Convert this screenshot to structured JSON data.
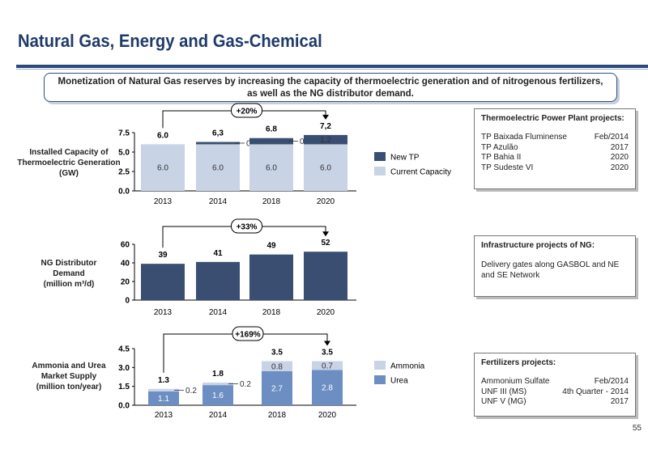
{
  "page": {
    "title": "Natural Gas, Energy and Gas-Chemical",
    "banner_line1": "Monetization of Natural Gas reserves by increasing the capacity of thermoelectric generation and of nitrogenous fertilizers,",
    "banner_line2": "as well as the NG distributor demand.",
    "page_number": "55"
  },
  "colors": {
    "title": "#1f3b6a",
    "dark_bar": "#3a4e72",
    "light_bar": "#c8d3e6",
    "mid_bar": "#6c8ec3",
    "rule": "#2a4a7c"
  },
  "labels": {
    "thermo_l1": "Installed Capacity of",
    "thermo_l2": "Thermoelectric Generation",
    "thermo_l3": "(GW)",
    "ng_l1": "NG Distributor",
    "ng_l2": "Demand",
    "ng_l3": "(million m³/d)",
    "amm_l1": "Ammonia and Urea",
    "amm_l2": "Market Supply",
    "amm_l3": "(million ton/year)"
  },
  "panels": {
    "thermo": {
      "title": "Thermoelectric Power Plant projects:",
      "rows": [
        {
          "name": "TP Baixada Fluminense",
          "date": "Feb/2014"
        },
        {
          "name": "TP Azulão",
          "date": "2017"
        },
        {
          "name": "TP Bahia II",
          "date": "2020"
        },
        {
          "name": "TP Sudeste VI",
          "date": "2020"
        }
      ]
    },
    "infra": {
      "title": "Infrastructure projects of NG:",
      "text": "Delivery gates along GASBOL and NE and SE Network"
    },
    "fert": {
      "title": "Fertilizers projects:",
      "rows": [
        {
          "name": "Ammonium Sulfate",
          "date": "Feb/2014"
        },
        {
          "name": "UNF III (MS)",
          "date": "4th Quarter - 2014"
        },
        {
          "name": "UNF V (MG)",
          "date": "2017"
        }
      ]
    }
  },
  "chart_data": [
    {
      "type": "bar",
      "stacked": true,
      "categories": [
        "2013",
        "2014",
        "2018",
        "2020"
      ],
      "series": [
        {
          "name": "Current Capacity",
          "values": [
            6.0,
            6.0,
            6.0,
            6.0
          ],
          "labels": [
            "6.0",
            "6.0",
            "6.0",
            "6.0"
          ],
          "color": "#c8d3e6"
        },
        {
          "name": "New TP",
          "values": [
            0,
            0.3,
            0.8,
            1.2
          ],
          "labels": [
            "",
            "0.3",
            "0.8",
            "1.2"
          ],
          "color": "#3a4e72"
        }
      ],
      "totals": [
        "6.0",
        "6,3",
        "6.8",
        "7,2"
      ],
      "yticks": [
        "0.0",
        "2.5",
        "5.0",
        "7.5"
      ],
      "ylim": [
        0,
        7.5
      ],
      "growth": "+20%",
      "legend_position": "right"
    },
    {
      "type": "bar",
      "categories": [
        "2013",
        "2014",
        "2018",
        "2020"
      ],
      "series": [
        {
          "name": "NG Distributor Demand",
          "values": [
            39,
            41,
            49,
            52
          ],
          "color": "#3a4e72"
        }
      ],
      "totals": [
        "39",
        "41",
        "49",
        "52"
      ],
      "yticks": [
        "0",
        "20",
        "40",
        "60"
      ],
      "ylim": [
        0,
        60
      ],
      "growth": "+33%"
    },
    {
      "type": "bar",
      "stacked": true,
      "categories": [
        "2013",
        "2014",
        "2018",
        "2020"
      ],
      "series": [
        {
          "name": "Urea",
          "values": [
            1.1,
            1.6,
            2.7,
            2.8
          ],
          "labels": [
            "1.1",
            "1.6",
            "2.7",
            "2.8"
          ],
          "color": "#6c8ec3"
        },
        {
          "name": "Ammonia",
          "values": [
            0.2,
            0.2,
            0.8,
            0.7
          ],
          "labels": [
            "0.2",
            "0.2",
            "0.8",
            "0.7"
          ],
          "color": "#c8d3e6"
        }
      ],
      "totals": [
        "1.3",
        "1.8",
        "3.5",
        "3.5"
      ],
      "yticks": [
        "0.0",
        "1.5",
        "3.0",
        "4.5"
      ],
      "ylim": [
        0,
        4.5
      ],
      "growth": "+169%",
      "legend_position": "right"
    }
  ]
}
